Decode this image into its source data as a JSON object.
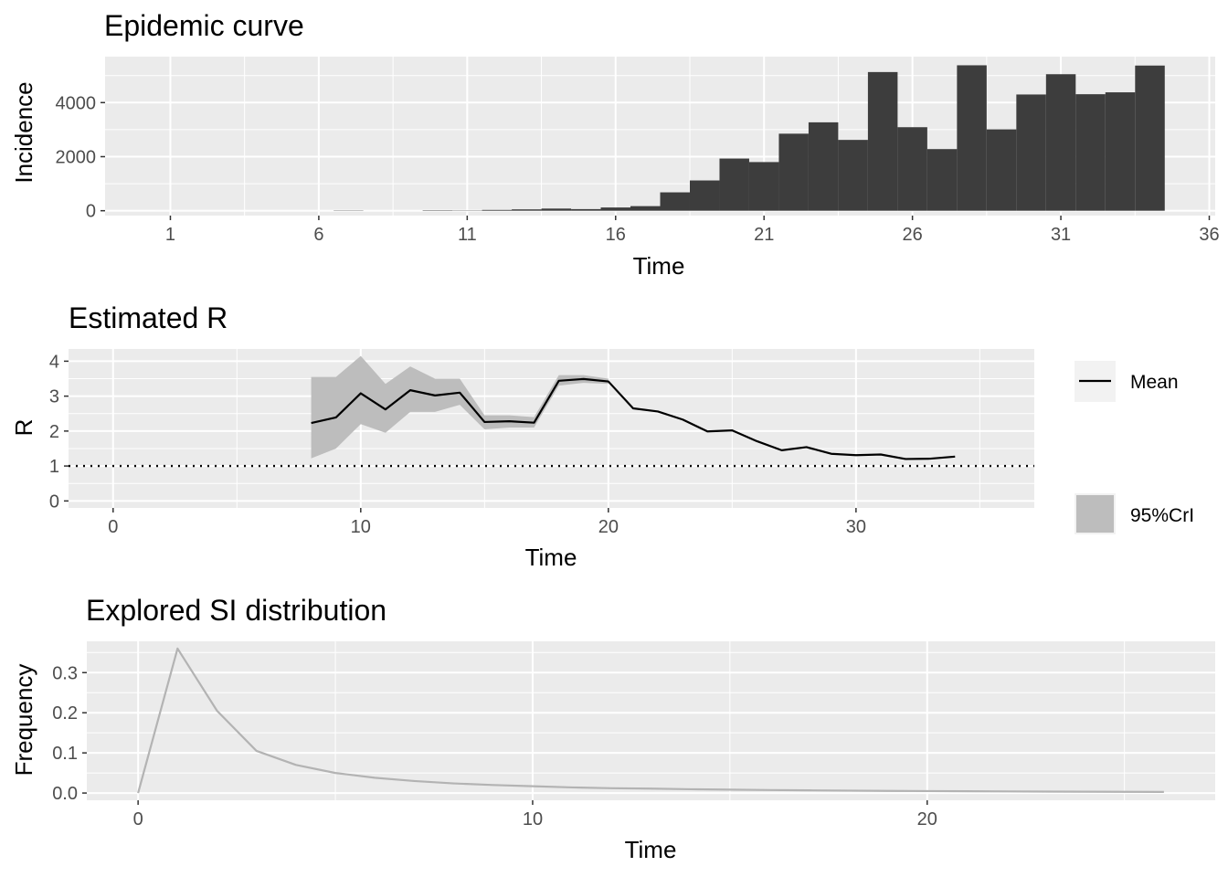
{
  "chart_data": [
    {
      "type": "bar",
      "title": "Epidemic curve",
      "xlabel": "Time",
      "ylabel": "Incidence",
      "xlim": [
        -1.2,
        36.2
      ],
      "ylim": [
        -180,
        5700
      ],
      "x_ticks": [
        1,
        6,
        11,
        16,
        21,
        26,
        31,
        36
      ],
      "y_ticks": [
        0,
        2000,
        4000
      ],
      "x": [
        1,
        2,
        3,
        4,
        5,
        6,
        7,
        8,
        9,
        10,
        11,
        12,
        13,
        14,
        15,
        16,
        17,
        18,
        19,
        20,
        21,
        22,
        23,
        24,
        25,
        26,
        27,
        28,
        29,
        30,
        31,
        32,
        33,
        34
      ],
      "values": [
        0,
        0,
        0,
        0,
        0,
        0,
        10,
        0,
        0,
        15,
        10,
        30,
        50,
        80,
        60,
        120,
        170,
        680,
        1120,
        1930,
        1800,
        2850,
        3270,
        2620,
        5130,
        3090,
        2280,
        5380,
        3010,
        4300,
        5050,
        4310,
        4380,
        5370
      ],
      "bar_color": "#3d3d3d",
      "grid": true
    },
    {
      "type": "line",
      "title": "Estimated R",
      "xlabel": "Time",
      "ylabel": "R",
      "xlim": [
        -1.8,
        37.2
      ],
      "ylim": [
        -0.2,
        4.35
      ],
      "x_ticks": [
        0,
        10,
        20,
        30
      ],
      "y_ticks": [
        0,
        1,
        2,
        3,
        4
      ],
      "x": [
        8,
        9,
        10,
        11,
        12,
        13,
        14,
        15,
        16,
        17,
        18,
        19,
        20,
        21,
        22,
        23,
        24,
        25,
        26,
        27,
        28,
        29,
        30,
        31,
        32,
        33,
        34
      ],
      "series": [
        {
          "name": "Mean",
          "values": [
            2.23,
            2.39,
            3.08,
            2.62,
            3.17,
            3.02,
            3.1,
            2.26,
            2.28,
            2.24,
            3.44,
            3.49,
            3.42,
            2.65,
            2.56,
            2.33,
            1.99,
            2.02,
            1.71,
            1.45,
            1.54,
            1.35,
            1.31,
            1.33,
            1.2,
            1.21,
            1.27
          ]
        }
      ],
      "band": {
        "name": "95%CrI",
        "x": [
          8,
          9,
          10,
          11,
          12,
          13,
          14,
          15,
          16,
          17,
          18,
          19,
          20
        ],
        "lower": [
          1.22,
          1.5,
          2.2,
          1.95,
          2.55,
          2.55,
          2.75,
          2.05,
          2.1,
          2.1,
          3.3,
          3.38,
          3.35
        ],
        "upper": [
          3.55,
          3.55,
          4.15,
          3.35,
          3.85,
          3.5,
          3.5,
          2.45,
          2.45,
          2.4,
          3.6,
          3.6,
          3.5
        ]
      },
      "reference_line": 1,
      "legend_position": "right",
      "legend_labels": [
        "Mean",
        "95%CrI"
      ],
      "line_color": "#000000",
      "band_color": "#bdbdbd",
      "grid": true
    },
    {
      "type": "line",
      "title": "Explored SI distribution",
      "xlabel": "Time",
      "ylabel": "Frequency",
      "xlim": [
        -1.3,
        27.3
      ],
      "ylim": [
        -0.018,
        0.378
      ],
      "x_ticks": [
        0,
        10,
        20
      ],
      "y_ticks": [
        0.0,
        0.1,
        0.2,
        0.3
      ],
      "y_tick_labels": [
        "0.0",
        "0.1",
        "0.2",
        "0.3"
      ],
      "x": [
        0,
        1,
        2,
        3,
        4,
        5,
        6,
        7,
        8,
        9,
        10,
        11,
        12,
        13,
        14,
        15,
        16,
        17,
        18,
        19,
        20,
        21,
        22,
        23,
        24,
        25,
        26
      ],
      "values": [
        0,
        0.36,
        0.205,
        0.105,
        0.07,
        0.05,
        0.038,
        0.03,
        0.024,
        0.02,
        0.017,
        0.014,
        0.012,
        0.011,
        0.0095,
        0.0085,
        0.0075,
        0.0067,
        0.006,
        0.0054,
        0.0049,
        0.0044,
        0.004,
        0.0037,
        0.0034,
        0.0031,
        0.0028
      ],
      "line_color": "#b3b3b3",
      "grid": true
    }
  ]
}
